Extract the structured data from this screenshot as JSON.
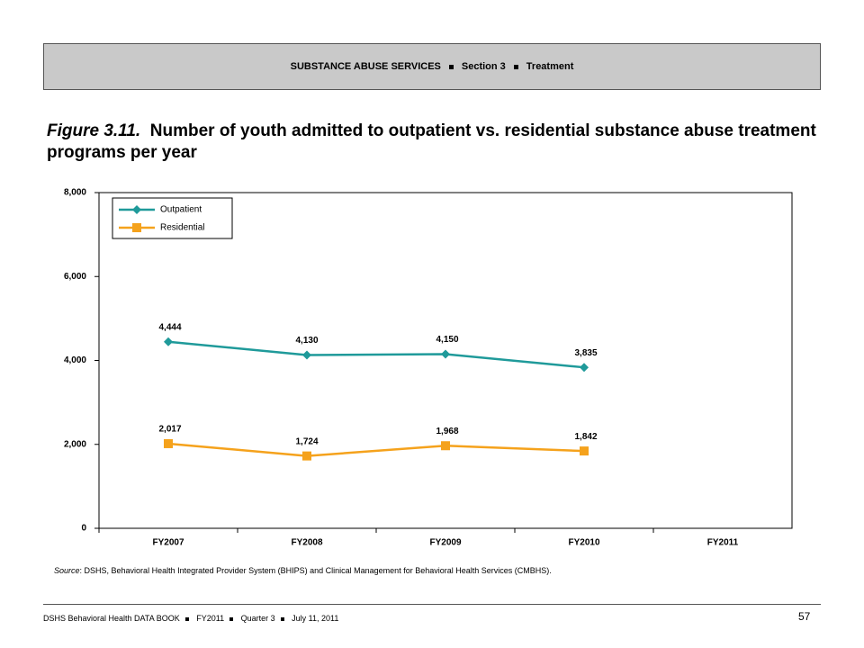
{
  "header": {
    "parts": [
      "SUBSTANCE ABUSE SERVICES",
      "Section 3",
      "Treatment"
    ]
  },
  "figure": {
    "label": "Figure 3.11.",
    "title": "Number of youth admitted to outpatient vs. residential substance abuse treatment programs per year"
  },
  "chart_data": {
    "type": "line",
    "categories": [
      "FY2007",
      "FY2008",
      "FY2009",
      "FY2010",
      "FY2011"
    ],
    "series": [
      {
        "name": "Outpatient",
        "color": "#1f9a9a",
        "marker": "diamond",
        "values": [
          4444,
          4130,
          4150,
          3835,
          null
        ],
        "value_labels": [
          "4,444",
          "4,130",
          "4,150",
          "3,835",
          null
        ]
      },
      {
        "name": "Residential",
        "color": "#f5a21c",
        "marker": "square",
        "values": [
          2017,
          1724,
          1968,
          1842,
          null
        ],
        "value_labels": [
          "2,017",
          "1,724",
          "1,968",
          "1,842",
          null
        ]
      }
    ],
    "ylim": [
      0,
      8000
    ],
    "yticks": [
      0,
      {
        "value": 2000,
        "label": "2,000"
      },
      {
        "value": 4000,
        "label": "4,000"
      },
      {
        "value": 6000,
        "label": "6,000"
      },
      {
        "value": 8000,
        "label": "8,000"
      }
    ],
    "legend": "upper left"
  },
  "source": {
    "label": "Source",
    "text": ": DSHS, Behavioral Health Integrated Provider System (BHIPS) and Clinical Management for Behavioral Health Services (CMBHS)."
  },
  "footer": {
    "parts": [
      "DSHS Behavioral Health DATA BOOK",
      "FY2011",
      "Quarter 3",
      "July 11, 2011"
    ],
    "page": "57"
  }
}
